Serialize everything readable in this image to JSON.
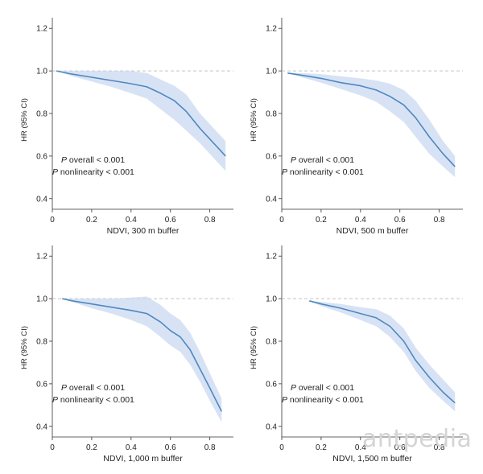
{
  "watermark": "antpedia",
  "chart_data": [
    {
      "type": "line",
      "xlabel": "NDVI, 300 m buffer",
      "ylabel": "HR (95% CI)",
      "xlim": [
        0,
        0.92
      ],
      "ylim": [
        0.35,
        1.25
      ],
      "xticks": [
        "0",
        "0.2",
        "0.4",
        "0.6",
        "0.8"
      ],
      "yticks": [
        "0.4",
        "0.6",
        "0.8",
        "1.0",
        "1.2"
      ],
      "reference_line": 1.0,
      "annotation": {
        "p_letter": "P",
        "overall": " overall < 0.001",
        "nonlinearity": " nonlinearity < 0.001"
      },
      "series": [
        {
          "x": [
            0.02,
            0.1,
            0.2,
            0.3,
            0.4,
            0.48,
            0.55,
            0.62,
            0.68,
            0.75,
            0.82,
            0.88
          ],
          "y": [
            1.0,
            0.985,
            0.97,
            0.955,
            0.94,
            0.925,
            0.895,
            0.86,
            0.81,
            0.73,
            0.66,
            0.6
          ],
          "lower": [
            1.0,
            0.975,
            0.95,
            0.925,
            0.895,
            0.87,
            0.82,
            0.77,
            0.72,
            0.66,
            0.59,
            0.53
          ],
          "upper": [
            1.0,
            1.0,
            1.0,
            1.0,
            1.0,
            0.99,
            0.96,
            0.93,
            0.89,
            0.8,
            0.73,
            0.67
          ]
        }
      ]
    },
    {
      "type": "line",
      "xlabel": "NDVI, 500 m buffer",
      "ylabel": "HR (95% CI)",
      "xlim": [
        0,
        0.92
      ],
      "ylim": [
        0.35,
        1.25
      ],
      "xticks": [
        "0",
        "0.2",
        "0.4",
        "0.6",
        "0.8"
      ],
      "yticks": [
        "0.4",
        "0.6",
        "0.8",
        "1.0",
        "1.2"
      ],
      "reference_line": 1.0,
      "annotation": {
        "p_letter": "P",
        "overall": " overall < 0.001",
        "nonlinearity": " nonlinearity < 0.001"
      },
      "series": [
        {
          "x": [
            0.03,
            0.1,
            0.2,
            0.3,
            0.4,
            0.48,
            0.55,
            0.62,
            0.68,
            0.75,
            0.82,
            0.88
          ],
          "y": [
            0.99,
            0.98,
            0.965,
            0.945,
            0.93,
            0.91,
            0.88,
            0.84,
            0.78,
            0.69,
            0.61,
            0.55
          ],
          "lower": [
            0.99,
            0.97,
            0.945,
            0.915,
            0.885,
            0.855,
            0.81,
            0.76,
            0.69,
            0.61,
            0.55,
            0.5
          ],
          "upper": [
            0.99,
            0.99,
            0.985,
            0.975,
            0.965,
            0.955,
            0.94,
            0.91,
            0.86,
            0.77,
            0.67,
            0.6
          ]
        }
      ]
    },
    {
      "type": "line",
      "xlabel": "NDVI, 1,000 m buffer",
      "ylabel": "HR (95% CI)",
      "xlim": [
        0,
        0.92
      ],
      "ylim": [
        0.35,
        1.25
      ],
      "xticks": [
        "0",
        "0.2",
        "0.4",
        "0.6",
        "0.8"
      ],
      "yticks": [
        "0.4",
        "0.6",
        "0.8",
        "1.0",
        "1.2"
      ],
      "reference_line": 1.0,
      "annotation": {
        "p_letter": "P",
        "overall": " overall < 0.001",
        "nonlinearity": " nonlinearity < 0.001"
      },
      "series": [
        {
          "x": [
            0.05,
            0.1,
            0.2,
            0.3,
            0.4,
            0.48,
            0.55,
            0.6,
            0.65,
            0.7,
            0.75,
            0.8,
            0.86
          ],
          "y": [
            1.0,
            0.99,
            0.975,
            0.96,
            0.945,
            0.93,
            0.89,
            0.85,
            0.82,
            0.76,
            0.67,
            0.58,
            0.47
          ],
          "lower": [
            1.0,
            0.985,
            0.955,
            0.93,
            0.9,
            0.87,
            0.82,
            0.78,
            0.75,
            0.69,
            0.61,
            0.52,
            0.42
          ],
          "upper": [
            1.0,
            1.0,
            1.0,
            1.0,
            1.005,
            1.01,
            0.97,
            0.93,
            0.9,
            0.84,
            0.75,
            0.65,
            0.53
          ]
        }
      ]
    },
    {
      "type": "line",
      "xlabel": "NDVI, 1,500 m buffer",
      "ylabel": "HR (95% CI)",
      "xlim": [
        0,
        0.92
      ],
      "ylim": [
        0.35,
        1.25
      ],
      "xticks": [
        "0",
        "0.2",
        "0.4",
        "0.6",
        "0.8"
      ],
      "yticks": [
        "0.4",
        "0.6",
        "0.8",
        "1.0",
        "1.2"
      ],
      "reference_line": 1.0,
      "annotation": {
        "p_letter": "P",
        "overall": " overall < 0.001",
        "nonlinearity": " nonlinearity < 0.001"
      },
      "series": [
        {
          "x": [
            0.14,
            0.2,
            0.3,
            0.4,
            0.48,
            0.55,
            0.62,
            0.68,
            0.75,
            0.82,
            0.88
          ],
          "y": [
            0.99,
            0.975,
            0.955,
            0.93,
            0.91,
            0.87,
            0.8,
            0.71,
            0.63,
            0.56,
            0.51
          ],
          "lower": [
            0.99,
            0.965,
            0.935,
            0.9,
            0.87,
            0.82,
            0.75,
            0.66,
            0.58,
            0.52,
            0.47
          ],
          "upper": [
            0.99,
            0.985,
            0.975,
            0.96,
            0.95,
            0.92,
            0.86,
            0.77,
            0.69,
            0.62,
            0.56
          ]
        }
      ]
    }
  ]
}
